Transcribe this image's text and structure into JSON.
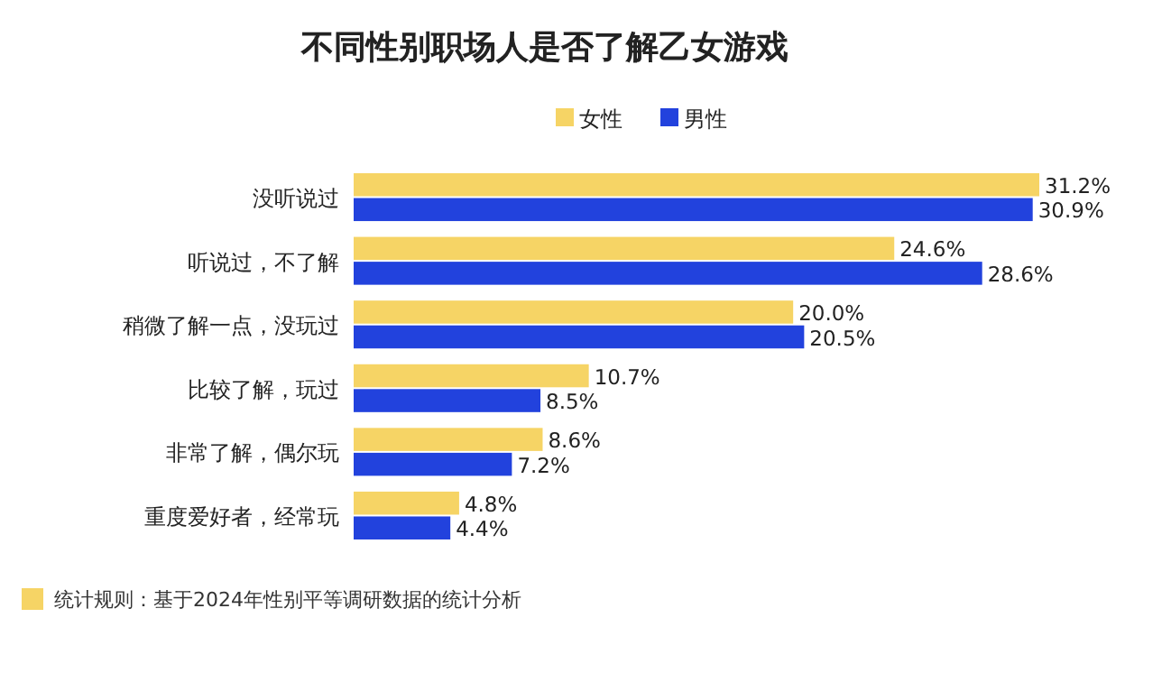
{
  "chart_data": {
    "type": "bar",
    "orientation": "horizontal",
    "title": "不同性别职场人是否了解乙女游戏",
    "categories": [
      "没听说过",
      "听说过，不了解",
      "稍微了解一点，没玩过",
      "比较了解，玩过",
      "非常了解，偶尔玩",
      "重度爱好者，经常玩"
    ],
    "series": [
      {
        "name": "女性",
        "color": "#f6d465",
        "values": [
          31.2,
          24.6,
          20.0,
          10.7,
          8.6,
          4.8
        ],
        "value_labels": [
          "31.2%",
          "24.6%",
          "20.0%",
          "10.7%",
          "8.6%",
          "4.8%"
        ]
      },
      {
        "name": "男性",
        "color": "#2242dd",
        "values": [
          30.9,
          28.6,
          20.5,
          8.5,
          7.2,
          4.4
        ],
        "value_labels": [
          "30.9%",
          "28.6%",
          "20.5%",
          "8.5%",
          "7.2%",
          "4.4%"
        ]
      }
    ],
    "legend": "top",
    "grid": false,
    "annotations": [
      "统计规则：基于2024年性别平等调研数据的统计分析"
    ]
  }
}
